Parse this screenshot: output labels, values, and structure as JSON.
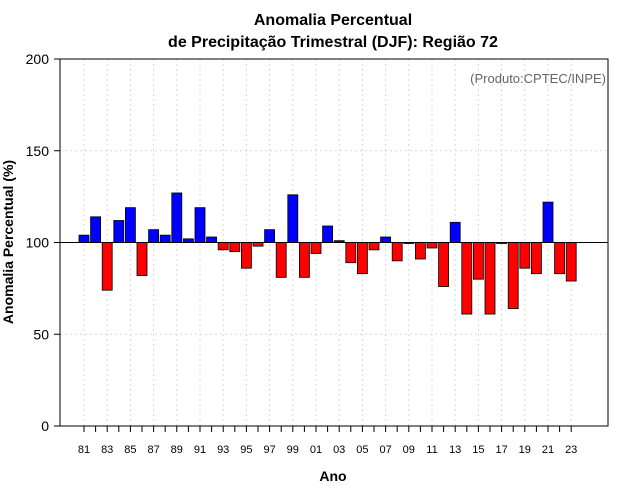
{
  "chart_data": {
    "type": "bar",
    "title_line1": "Anomalia Percentual",
    "title_line2": "de Precipitação Trimestral (DJF): Região 72",
    "xlabel": "Ano",
    "ylabel": "Anomalia Percentual (%)",
    "credit": "(Produto:CPTEC/INPE)",
    "ylim": [
      0,
      200
    ],
    "yticks": [
      0,
      50,
      100,
      150,
      200
    ],
    "baseline": 100,
    "grid": true,
    "colors": {
      "above": "#0000ff",
      "below": "#ff0000",
      "edge": "#000000",
      "grid": "#d8d8d8"
    },
    "categories": [
      "81",
      "82",
      "83",
      "84",
      "85",
      "86",
      "87",
      "88",
      "89",
      "90",
      "91",
      "92",
      "93",
      "94",
      "95",
      "96",
      "97",
      "98",
      "99",
      "00",
      "01",
      "02",
      "03",
      "04",
      "05",
      "06",
      "07",
      "08",
      "09",
      "10",
      "11",
      "12",
      "13",
      "14",
      "15",
      "16",
      "17",
      "18",
      "19",
      "20",
      "21",
      "22",
      "23"
    ],
    "x_tick_labels": [
      "81",
      "83",
      "85",
      "87",
      "89",
      "91",
      "93",
      "95",
      "97",
      "99",
      "01",
      "03",
      "05",
      "07",
      "09",
      "11",
      "13",
      "15",
      "17",
      "19",
      "21",
      "23"
    ],
    "values": [
      104,
      114,
      74,
      112,
      119,
      82,
      107,
      104,
      127,
      102,
      119,
      103,
      96,
      95,
      86,
      98,
      107,
      81,
      126,
      81,
      94,
      109,
      101,
      89,
      83,
      96,
      103,
      90,
      100,
      91,
      97,
      76,
      111,
      61,
      80,
      61,
      100,
      64,
      86,
      83,
      122,
      83,
      79
    ]
  }
}
